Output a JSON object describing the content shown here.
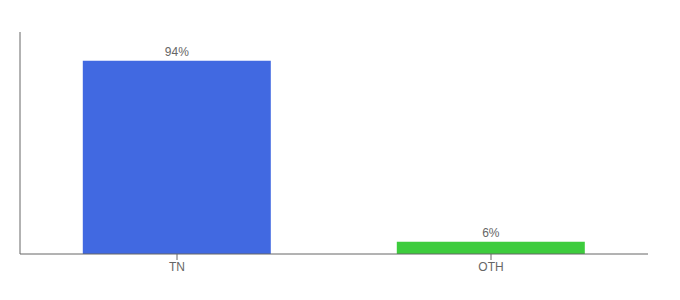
{
  "chart_data": {
    "type": "bar",
    "categories": [
      "TN",
      "OTH"
    ],
    "values": [
      94,
      6
    ],
    "colors": [
      "#4169e1",
      "#3dcc3d"
    ],
    "value_labels": [
      "94%",
      "6%"
    ],
    "data_labels": true,
    "ylim": [
      0,
      108
    ],
    "tick_labels": "x"
  }
}
